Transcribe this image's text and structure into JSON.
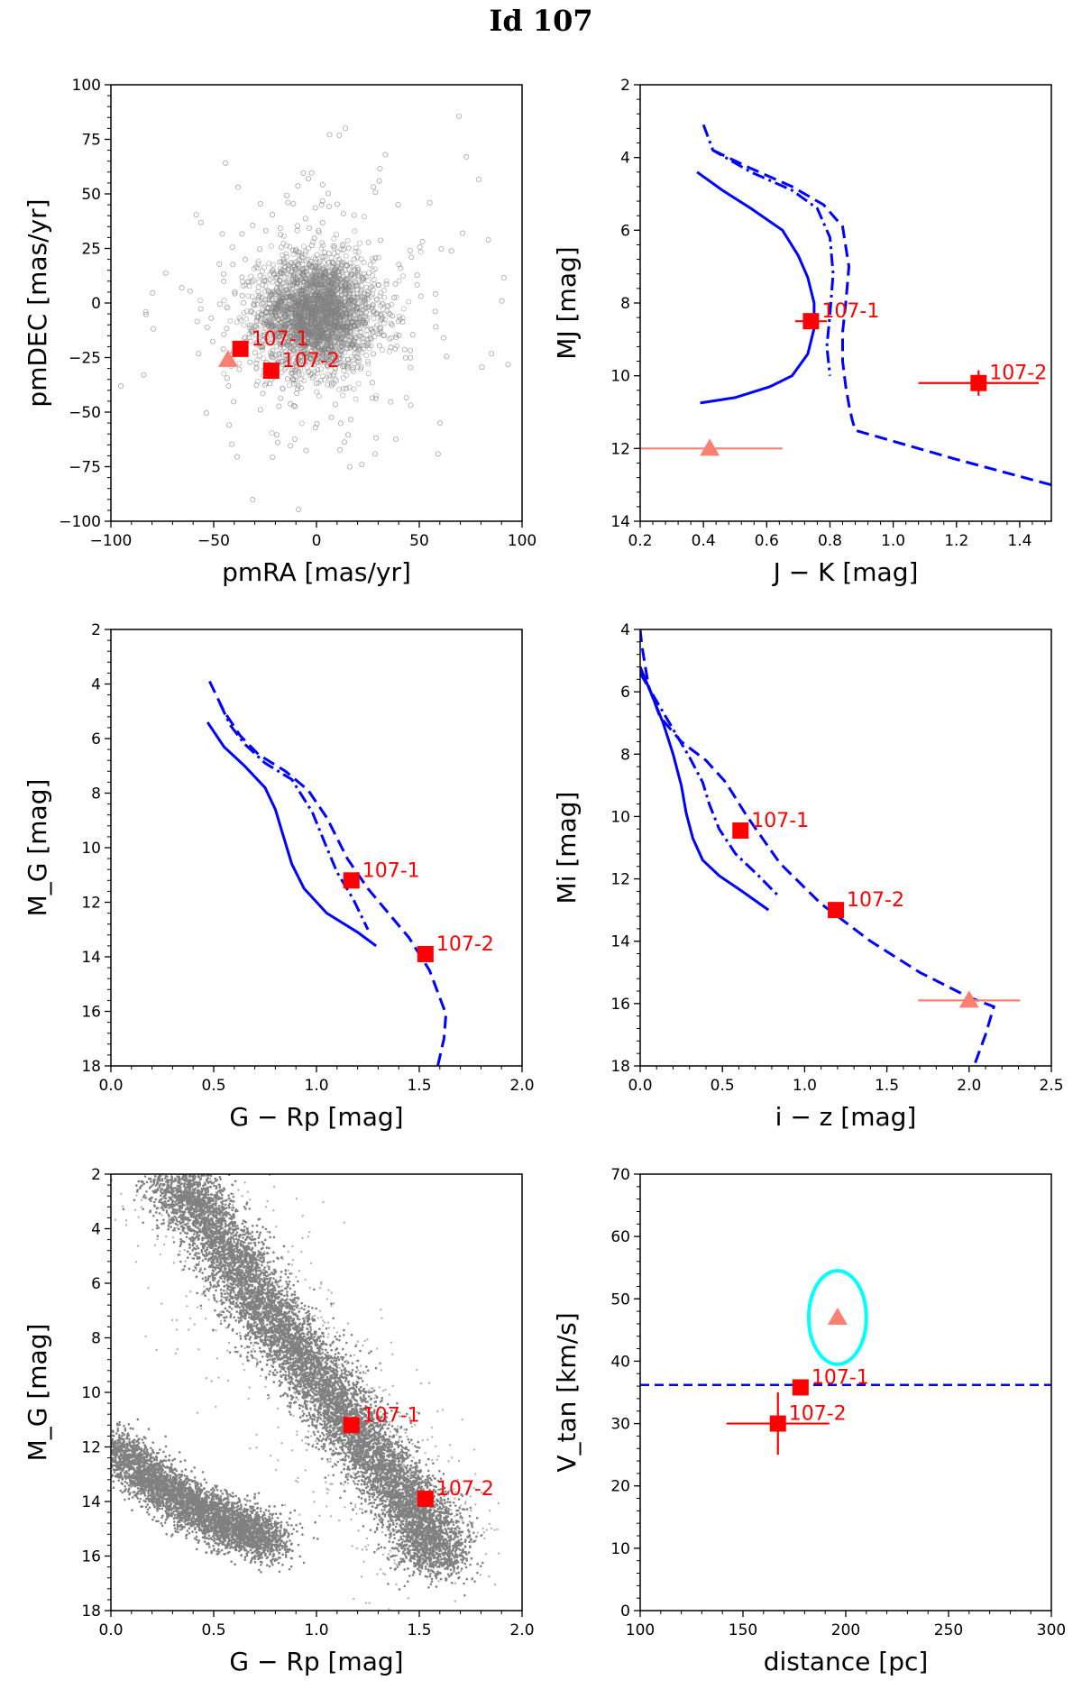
{
  "figure_title": "Id 107",
  "colors": {
    "model": "#0000ff",
    "star": "#ff0000",
    "reference": "#fa8072",
    "cloud": "#808080",
    "highlight": "#00ffff"
  },
  "chart_data": [
    {
      "id": "pm",
      "type": "scatter",
      "xlabel": "pmRA [mas/yr]",
      "ylabel": "pmDEC [mas/yr]",
      "xlim": [
        -100,
        100
      ],
      "ylim": [
        -100,
        100
      ],
      "y_inverted": false,
      "xticks": [
        -100,
        -50,
        0,
        50,
        100
      ],
      "yticks": [
        -100,
        -75,
        -50,
        -25,
        0,
        25,
        50,
        75,
        100
      ],
      "cloud": {
        "kind": "open-circles",
        "center": [
          0,
          -5
        ],
        "spread": [
          14,
          13
        ],
        "outliers": 320
      },
      "lines": [],
      "points": [
        {
          "label": "107-1",
          "x": -37,
          "y": -21,
          "marker": "square"
        },
        {
          "label": "107-2",
          "x": -22,
          "y": -31,
          "marker": "square"
        },
        {
          "label": "",
          "x": -43,
          "y": -26,
          "marker": "triangle",
          "color": "reference"
        }
      ]
    },
    {
      "id": "mj",
      "type": "line",
      "xlabel": "J − K [mag]",
      "ylabel": "MJ [mag]",
      "xlim": [
        0.2,
        1.5
      ],
      "ylim": [
        2,
        14
      ],
      "y_inverted": true,
      "xticks": [
        0.2,
        0.4,
        0.6,
        0.8,
        1.0,
        1.2,
        1.4
      ],
      "yticks": [
        2,
        4,
        6,
        8,
        10,
        12,
        14
      ],
      "lines": [
        {
          "style": "solid",
          "x": [
            0.38,
            0.46,
            0.55,
            0.65,
            0.7,
            0.73,
            0.75,
            0.75,
            0.73,
            0.68,
            0.61,
            0.5,
            0.39
          ],
          "y": [
            4.4,
            4.9,
            5.4,
            6.0,
            6.7,
            7.3,
            8.0,
            8.7,
            9.4,
            10.0,
            10.3,
            10.6,
            10.75
          ]
        },
        {
          "style": "dashdot",
          "x": [
            0.4,
            0.43,
            0.55,
            0.68,
            0.76,
            0.8,
            0.81,
            0.8,
            0.79,
            0.8
          ],
          "y": [
            3.1,
            3.8,
            4.4,
            4.9,
            5.4,
            6.2,
            7.2,
            8.3,
            9.2,
            10.0
          ]
        },
        {
          "style": "dashed",
          "x": [
            0.43,
            0.55,
            0.68,
            0.78,
            0.84,
            0.86,
            0.85,
            0.84,
            0.84,
            0.85,
            0.86,
            0.87,
            0.88,
            1.2,
            1.5
          ],
          "y": [
            3.8,
            4.3,
            4.8,
            5.3,
            5.9,
            7.0,
            8.0,
            8.8,
            9.6,
            10.3,
            10.8,
            11.2,
            11.5,
            12.3,
            13.0
          ]
        }
      ],
      "points": [
        {
          "label": "107-1",
          "x": 0.74,
          "y": 8.5,
          "marker": "square",
          "xerr": 0.05,
          "yerr": 0.2
        },
        {
          "label": "107-2",
          "x": 1.27,
          "y": 10.2,
          "marker": "square",
          "xerr": 0.19,
          "yerr": 0.35
        },
        {
          "label": "",
          "x": 0.42,
          "y": 12.0,
          "marker": "triangle",
          "color": "reference",
          "xerr": 0.23,
          "yerr": 0
        }
      ]
    },
    {
      "id": "mg",
      "type": "line",
      "xlabel": "G − Rp [mag]",
      "ylabel": "M_G [mag]",
      "xlim": [
        0.0,
        2.0
      ],
      "ylim": [
        2,
        18
      ],
      "y_inverted": true,
      "xticks": [
        0.0,
        0.5,
        1.0,
        1.5,
        2.0
      ],
      "yticks": [
        2,
        4,
        6,
        8,
        10,
        12,
        14,
        16,
        18
      ],
      "lines": [
        {
          "style": "solid",
          "x": [
            0.47,
            0.55,
            0.65,
            0.75,
            0.8,
            0.84,
            0.88,
            0.94,
            1.05,
            1.2,
            1.29
          ],
          "y": [
            5.4,
            6.3,
            7.0,
            7.8,
            8.6,
            9.6,
            10.6,
            11.5,
            12.4,
            13.1,
            13.6
          ]
        },
        {
          "style": "dashdot",
          "x": [
            0.53,
            0.58,
            0.65,
            0.75,
            0.88,
            0.98,
            1.05,
            1.1,
            1.18,
            1.25
          ],
          "y": [
            4.7,
            5.5,
            6.2,
            6.9,
            7.5,
            8.7,
            10.0,
            10.9,
            11.9,
            13.0
          ]
        },
        {
          "style": "dashed",
          "x": [
            0.48,
            0.55,
            0.63,
            0.72,
            0.85,
            0.96,
            1.05,
            1.15,
            1.25,
            1.35,
            1.45,
            1.55,
            1.6,
            1.63,
            1.62,
            1.59
          ],
          "y": [
            3.9,
            5.0,
            5.9,
            6.6,
            7.2,
            7.9,
            8.9,
            10.4,
            11.5,
            12.4,
            13.3,
            14.5,
            15.5,
            16.1,
            17.0,
            18.0
          ]
        }
      ],
      "points": [
        {
          "label": "107-1",
          "x": 1.17,
          "y": 11.2,
          "marker": "square"
        },
        {
          "label": "107-2",
          "x": 1.53,
          "y": 13.9,
          "marker": "square"
        }
      ]
    },
    {
      "id": "mi",
      "type": "line",
      "xlabel": "i − z [mag]",
      "ylabel": "Mi [mag]",
      "xlim": [
        0.0,
        2.5
      ],
      "ylim": [
        4,
        18
      ],
      "y_inverted": true,
      "xticks": [
        0.0,
        0.5,
        1.0,
        1.5,
        2.0,
        2.5
      ],
      "yticks": [
        4,
        6,
        8,
        10,
        12,
        14,
        16,
        18
      ],
      "lines": [
        {
          "style": "solid",
          "x": [
            0.0,
            0.07,
            0.14,
            0.2,
            0.25,
            0.28,
            0.32,
            0.38,
            0.48,
            0.62,
            0.78
          ],
          "y": [
            5.2,
            6.1,
            7.0,
            8.0,
            9.0,
            9.9,
            10.7,
            11.4,
            11.9,
            12.4,
            13.0
          ]
        },
        {
          "style": "dashdot",
          "x": [
            0.0,
            0.1,
            0.2,
            0.3,
            0.38,
            0.42,
            0.48,
            0.58,
            0.72,
            0.85
          ],
          "y": [
            5.4,
            6.3,
            7.2,
            8.1,
            8.9,
            9.6,
            10.4,
            11.2,
            11.9,
            12.6
          ]
        },
        {
          "style": "dashed",
          "x": [
            0.0,
            0.01,
            0.05,
            0.12,
            0.25,
            0.4,
            0.52,
            0.65,
            0.85,
            1.1,
            1.4,
            1.7,
            2.0,
            2.15,
            2.1,
            2.03
          ],
          "y": [
            4.0,
            4.5,
            5.8,
            6.8,
            7.6,
            8.2,
            8.9,
            10.0,
            11.5,
            12.8,
            14.0,
            15.0,
            15.8,
            16.1,
            17.0,
            18.0
          ]
        }
      ],
      "points": [
        {
          "label": "107-1",
          "x": 0.61,
          "y": 10.45,
          "marker": "square"
        },
        {
          "label": "107-2",
          "x": 1.19,
          "y": 13.0,
          "marker": "square"
        },
        {
          "label": "",
          "x": 2.0,
          "y": 15.9,
          "marker": "triangle",
          "color": "reference",
          "xerr": 0.31,
          "yerr": 0
        }
      ]
    },
    {
      "id": "cmd",
      "type": "scatter",
      "xlabel": "G − Rp [mag]",
      "ylabel": "M_G [mag]",
      "xlim": [
        0.0,
        2.0
      ],
      "ylim": [
        2,
        18
      ],
      "y_inverted": true,
      "xticks": [
        0.0,
        0.5,
        1.0,
        1.5,
        2.0
      ],
      "yticks": [
        2,
        4,
        6,
        8,
        10,
        12,
        14,
        16,
        18
      ],
      "cloud": {
        "kind": "dense-dots",
        "main_sequence": {
          "x": [
            0.3,
            0.5,
            0.7,
            0.9,
            1.1,
            1.3,
            1.5,
            1.6
          ],
          "y": [
            2.0,
            4.0,
            6.5,
            8.5,
            10.5,
            12.5,
            14.5,
            16.3
          ]
        },
        "white_dwarfs": {
          "x": [
            0.0,
            0.2,
            0.4,
            0.6,
            0.8
          ],
          "y": [
            12.0,
            13.2,
            14.2,
            14.9,
            15.5
          ]
        }
      },
      "lines": [],
      "points": [
        {
          "label": "107-1",
          "x": 1.17,
          "y": 11.2,
          "marker": "square"
        },
        {
          "label": "107-2",
          "x": 1.53,
          "y": 13.9,
          "marker": "square"
        }
      ]
    },
    {
      "id": "vtan",
      "type": "scatter",
      "xlabel": "distance [pc]",
      "ylabel": "V_tan [km/s]",
      "xlim": [
        100,
        300
      ],
      "ylim": [
        0,
        70
      ],
      "y_inverted": false,
      "xticks": [
        100,
        150,
        200,
        250,
        300
      ],
      "yticks": [
        0,
        10,
        20,
        30,
        40,
        50,
        60,
        70
      ],
      "hline": {
        "y": 36.2,
        "style": "dashed"
      },
      "ellipse": {
        "cx": 196,
        "cy": 47,
        "rx": 14,
        "ry": 7.5
      },
      "lines": [],
      "points": [
        {
          "label": "107-1",
          "x": 178,
          "y": 35.8,
          "marker": "square"
        },
        {
          "label": "107-2",
          "x": 167,
          "y": 30.0,
          "marker": "square",
          "xerr": 25,
          "yerr": 5
        },
        {
          "label": "",
          "x": 196,
          "y": 47,
          "marker": "triangle",
          "color": "reference"
        }
      ]
    }
  ]
}
